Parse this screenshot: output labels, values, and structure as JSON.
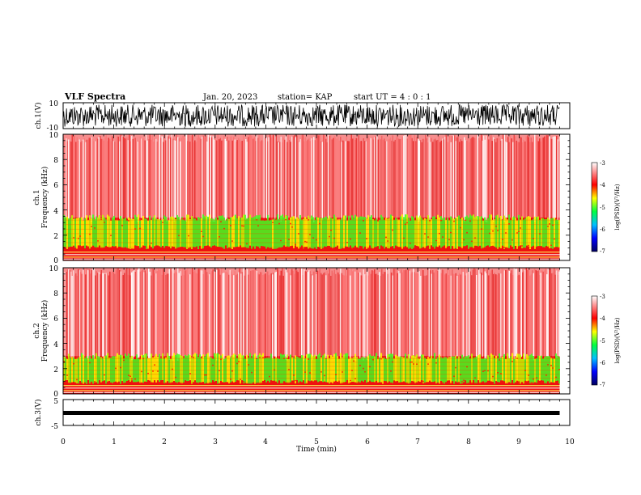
{
  "header": {
    "title": "VLF Spectra",
    "date": "Jan. 20, 2023",
    "station": "station= KAP",
    "start_ut": "start  UT =   4 : 0  : 1"
  },
  "chart_data": {
    "type": "heatmap",
    "x": {
      "label": "Time  (min)",
      "range": [
        0,
        10
      ],
      "ticks": [
        "0",
        "1",
        "2",
        "3",
        "4",
        "5",
        "6",
        "7",
        "8",
        "9",
        "10"
      ]
    },
    "panels": [
      {
        "id": "ch1-waveform",
        "ylabel": "ch.1(V)",
        "yticks": [
          "10",
          "-10"
        ],
        "range": [
          -10,
          10
        ],
        "kind": "waveform"
      },
      {
        "id": "ch1-spectrogram",
        "ylabel_top": "ch.1",
        "ylabel": "Frequency  (kHz)",
        "yticks": [
          "10",
          "8",
          "6",
          "4",
          "2",
          "0"
        ],
        "range": [
          0,
          10
        ],
        "kind": "spectrogram",
        "bands": [
          {
            "from": 0.9,
            "to": 3.4,
            "level": "high"
          }
        ]
      },
      {
        "id": "ch2-spectrogram",
        "ylabel_top": "ch.2",
        "ylabel": "Frequency  (kHz)",
        "yticks": [
          "10",
          "8",
          "6",
          "4",
          "2",
          "0"
        ],
        "range": [
          0,
          10
        ],
        "kind": "spectrogram",
        "bands": [
          {
            "from": 0.8,
            "to": 3.0,
            "level": "high"
          }
        ]
      },
      {
        "id": "ch3-waveform",
        "ylabel": "ch.3(V)",
        "yticks": [
          "5",
          "-5"
        ],
        "range": [
          -5,
          5
        ],
        "kind": "flat",
        "value": 0
      }
    ],
    "colorbar": {
      "label": "log(PSD)(V²/Hz)",
      "range": [
        -7,
        -3
      ],
      "ticks": [
        "-3",
        "-4",
        "-5",
        "-6",
        "-7"
      ],
      "colors": [
        "#000080",
        "#0000ff",
        "#00ffff",
        "#00ff00",
        "#ffff00",
        "#ff0000",
        "#ffffff"
      ]
    },
    "data_end_min": 9.8
  }
}
